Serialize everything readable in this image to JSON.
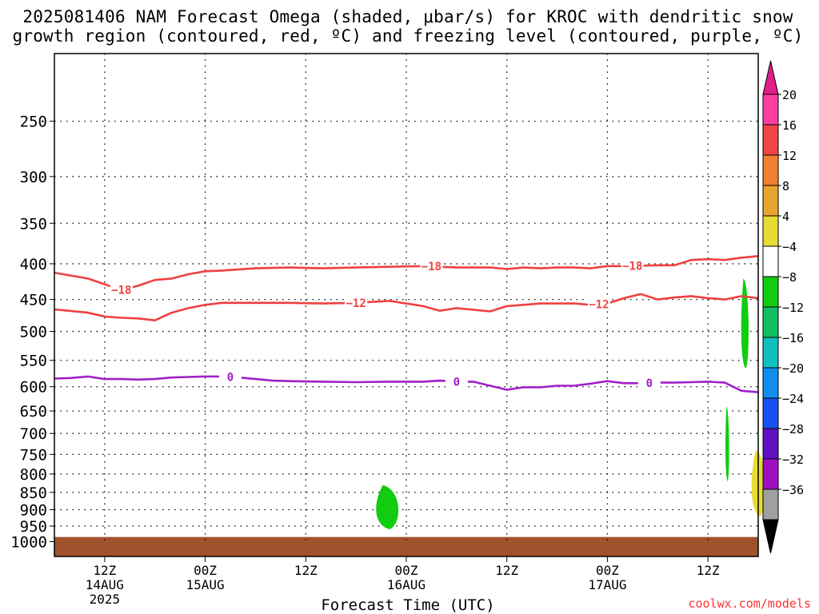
{
  "header": {
    "title_line1": "2025081406 NAM Forecast Omega (shaded, μbar/s) for KROC with dendritic snow",
    "title_line2": "growth region (contoured, red, ºC) and freezing level (contoured, purple, ºC)"
  },
  "footer": {
    "credit": "coolwx.com/models"
  },
  "chart_data": {
    "type": "contour",
    "xlabel": "Forecast Time (UTC)",
    "x_range_hours": [
      0,
      84
    ],
    "x_ticks": [
      {
        "hour": 6,
        "label": "12Z",
        "sub1": "14AUG",
        "sub2": "2025"
      },
      {
        "hour": 18,
        "label": "00Z",
        "sub1": "15AUG",
        "sub2": ""
      },
      {
        "hour": 30,
        "label": "12Z",
        "sub1": "",
        "sub2": ""
      },
      {
        "hour": 42,
        "label": "00Z",
        "sub1": "16AUG",
        "sub2": ""
      },
      {
        "hour": 54,
        "label": "12Z",
        "sub1": "",
        "sub2": ""
      },
      {
        "hour": 66,
        "label": "00Z",
        "sub1": "17AUG",
        "sub2": ""
      },
      {
        "hour": 78,
        "label": "12Z",
        "sub1": "",
        "sub2": ""
      }
    ],
    "y_axis": {
      "scale": "log",
      "units": "hPa",
      "range": [
        1050,
        200
      ]
    },
    "y_ticks": [
      250,
      300,
      350,
      400,
      450,
      500,
      550,
      600,
      650,
      700,
      750,
      800,
      850,
      900,
      950,
      1000
    ],
    "grid": true,
    "contours": [
      {
        "name": "-18",
        "color": "#f04040",
        "label_hours": [
          8,
          45,
          69
        ],
        "points": [
          [
            0,
            412
          ],
          [
            4,
            420
          ],
          [
            6,
            428
          ],
          [
            8,
            436
          ],
          [
            10,
            430
          ],
          [
            12,
            422
          ],
          [
            14,
            420
          ],
          [
            16,
            414
          ],
          [
            18,
            410
          ],
          [
            20,
            409
          ],
          [
            24,
            406
          ],
          [
            28,
            405
          ],
          [
            32,
            406
          ],
          [
            36,
            405
          ],
          [
            40,
            404
          ],
          [
            44,
            403
          ],
          [
            46,
            404
          ],
          [
            48,
            405
          ],
          [
            52,
            405
          ],
          [
            54,
            407
          ],
          [
            56,
            405
          ],
          [
            58,
            406
          ],
          [
            60,
            405
          ],
          [
            62,
            405
          ],
          [
            64,
            406
          ],
          [
            66,
            403
          ],
          [
            68,
            403
          ],
          [
            72,
            402
          ],
          [
            74,
            402
          ],
          [
            76,
            395
          ],
          [
            78,
            394
          ],
          [
            80,
            395
          ],
          [
            82,
            392
          ],
          [
            84,
            390
          ]
        ]
      },
      {
        "name": "-12",
        "color": "#f04040",
        "label_hours": [
          36,
          65
        ],
        "points": [
          [
            0,
            465
          ],
          [
            4,
            470
          ],
          [
            6,
            476
          ],
          [
            8,
            478
          ],
          [
            10,
            479
          ],
          [
            12,
            482
          ],
          [
            14,
            470
          ],
          [
            16,
            463
          ],
          [
            18,
            458
          ],
          [
            20,
            455
          ],
          [
            24,
            455
          ],
          [
            28,
            455
          ],
          [
            32,
            456
          ],
          [
            36,
            455
          ],
          [
            40,
            452
          ],
          [
            44,
            460
          ],
          [
            46,
            467
          ],
          [
            48,
            463
          ],
          [
            52,
            468
          ],
          [
            54,
            460
          ],
          [
            56,
            458
          ],
          [
            58,
            456
          ],
          [
            60,
            456
          ],
          [
            62,
            456
          ],
          [
            64,
            458
          ],
          [
            66,
            456
          ],
          [
            68,
            448
          ],
          [
            70,
            442
          ],
          [
            72,
            450
          ],
          [
            74,
            447
          ],
          [
            76,
            445
          ],
          [
            78,
            448
          ],
          [
            80,
            450
          ],
          [
            82,
            445
          ],
          [
            84,
            448
          ]
        ]
      },
      {
        "name": "0",
        "color": "#a020c8",
        "label_hours": [
          21,
          48,
          71
        ],
        "points": [
          [
            0,
            584
          ],
          [
            2,
            583
          ],
          [
            4,
            580
          ],
          [
            6,
            585
          ],
          [
            8,
            585
          ],
          [
            10,
            586
          ],
          [
            12,
            585
          ],
          [
            14,
            582
          ],
          [
            16,
            581
          ],
          [
            18,
            580
          ],
          [
            20,
            580
          ],
          [
            22,
            582
          ],
          [
            24,
            585
          ],
          [
            26,
            588
          ],
          [
            28,
            589
          ],
          [
            32,
            590
          ],
          [
            36,
            591
          ],
          [
            40,
            590
          ],
          [
            44,
            590
          ],
          [
            46,
            588
          ],
          [
            48,
            590
          ],
          [
            50,
            590
          ],
          [
            52,
            598
          ],
          [
            54,
            606
          ],
          [
            56,
            601
          ],
          [
            58,
            601
          ],
          [
            60,
            598
          ],
          [
            62,
            598
          ],
          [
            64,
            594
          ],
          [
            66,
            589
          ],
          [
            68,
            593
          ],
          [
            70,
            593
          ],
          [
            72,
            592
          ],
          [
            74,
            592
          ],
          [
            76,
            591
          ],
          [
            78,
            590
          ],
          [
            80,
            592
          ],
          [
            82,
            608
          ],
          [
            84,
            611
          ]
        ]
      }
    ],
    "shaded_regions": [
      {
        "name": "omega -4 to -8",
        "color": "#11cc11",
        "center_hour": 39.7,
        "pressure_range": [
          830,
          960
        ]
      },
      {
        "name": "omega -4 to -8",
        "color": "#11cc11",
        "center_hour": 80.3,
        "pressure_range": [
          640,
          820
        ]
      },
      {
        "name": "omega -4 to -8",
        "color": "#11cc11",
        "center_hour": 82.4,
        "pressure_range": [
          420,
          565
        ]
      },
      {
        "name": "omega 4 to 8",
        "color": "#e6dc32",
        "center_hour": 84,
        "pressure_range": [
          740,
          920
        ]
      }
    ],
    "ground": {
      "color": "#a0522d",
      "pressure_range": [
        990,
        1050
      ]
    },
    "colorbar": {
      "labels": [
        "20",
        "16",
        "12",
        "8",
        "4",
        "−4",
        "−8",
        "−12",
        "−16",
        "−20",
        "−24",
        "−28",
        "−32",
        "−36"
      ],
      "colors": [
        "#ff3fa0",
        "#f04545",
        "#f08030",
        "#e6a432",
        "#e6dc32",
        "#ffffff",
        "#11cc11",
        "#10c060",
        "#10c0c0",
        "#108ef0",
        "#1850f0",
        "#6010c0",
        "#a010c0",
        "#a0a0a0"
      ],
      "top_arrow_color": "#e0208a",
      "bottom_arrow_color": "#000000"
    }
  }
}
